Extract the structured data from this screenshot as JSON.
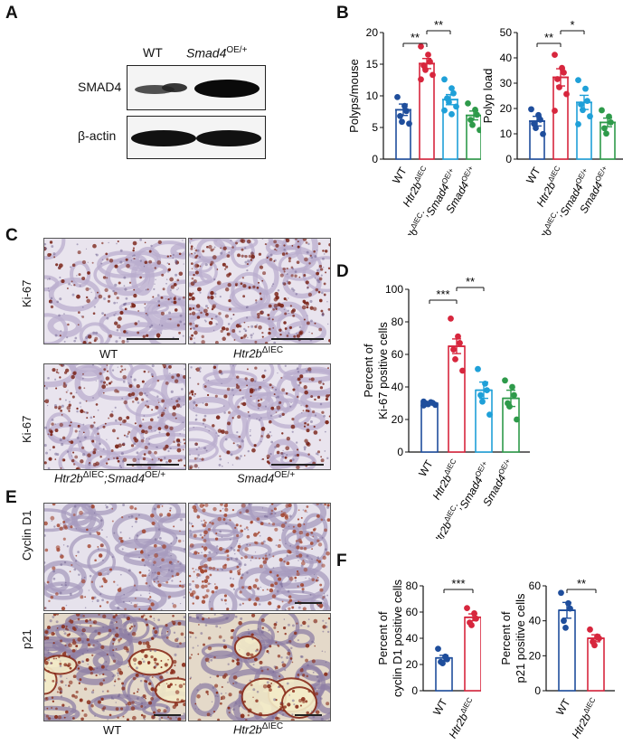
{
  "panels": {
    "A": "A",
    "B": "B",
    "C": "C",
    "D": "D",
    "E": "E",
    "F": "F"
  },
  "western_blot": {
    "col_wt": "WT",
    "col_smad4_gene": "Smad4",
    "col_smad4_sup": "OE/+",
    "row_smad4": "SMAD4",
    "row_actin": "β-actin"
  },
  "ihc": {
    "row_ki67": "Ki-67",
    "row_cyclin": "Cyclin D1",
    "row_p21": "p21",
    "cap_wt": "WT",
    "cap_htr2b": "Htr2b",
    "sup_iec": "ΔIEC",
    "cap_combo_gene": "Htr2b",
    "cap_combo_mid": ";Smad4",
    "sup_oe": "OE/+",
    "cap_smad4": "Smad4"
  },
  "colors": {
    "wt": "#1f4e9c",
    "htr2b": "#d7263d",
    "combo": "#1fa0d8",
    "smad4": "#2e9a4a"
  },
  "chart_data": [
    {
      "id": "B1",
      "type": "bar",
      "ylabel": "Polyps/mouse",
      "ylim": [
        0,
        20
      ],
      "yticks": [
        0,
        5,
        10,
        15,
        20
      ],
      "categories": [
        "WT",
        "Htr2b ΔIEC",
        "Htr2b ΔIEC;Smad4 OE/+",
        "Smad4 OE/+"
      ],
      "values": [
        7.8,
        15.1,
        9.4,
        6.9
      ],
      "errors": [
        0.9,
        0.8,
        0.8,
        0.7
      ],
      "points": [
        [
          9.8,
          8.4,
          7.6,
          6.8,
          5.9,
          5.6
        ],
        [
          17.8,
          16.5,
          15.4,
          14.8,
          14.1,
          13.3,
          12.6
        ],
        [
          12.6,
          11.2,
          10.4,
          9.6,
          9.0,
          8.3,
          7.7,
          7.1
        ],
        [
          8.8,
          7.8,
          7.0,
          6.2,
          5.4,
          4.6
        ]
      ],
      "significance": [
        {
          "from": 0,
          "to": 1,
          "label": "**"
        },
        {
          "from": 1,
          "to": 2,
          "label": "**"
        }
      ]
    },
    {
      "id": "B2",
      "type": "bar",
      "ylabel": "Polyp load",
      "ylim": [
        0,
        50
      ],
      "yticks": [
        0,
        10,
        20,
        30,
        40,
        50
      ],
      "categories": [
        "WT",
        "Htr2b ΔIEC",
        "Htr2b ΔIEC;Smad4 OE/+",
        "Smad4 OE/+"
      ],
      "values": [
        15.0,
        32.3,
        22.4,
        14.5
      ],
      "errors": [
        1.9,
        3.4,
        2.8,
        1.7
      ],
      "points": [
        [
          19.7,
          17.4,
          15.6,
          14.0,
          12.3,
          9.9
        ],
        [
          41.2,
          36.0,
          34.2,
          31.6,
          28.4,
          25.7,
          19.1
        ],
        [
          31.2,
          27.8,
          23.0,
          21.6,
          19.4,
          16.9,
          13.8
        ],
        [
          19.3,
          16.8,
          14.5,
          12.2,
          10.1
        ]
      ],
      "significance": [
        {
          "from": 0,
          "to": 1,
          "label": "**"
        },
        {
          "from": 1,
          "to": 2,
          "label": "*"
        }
      ]
    },
    {
      "id": "D",
      "type": "bar",
      "ylabel": "Percent of",
      "ylabel2": "Ki-67 positive cells",
      "ylim": [
        0,
        100
      ],
      "yticks": [
        0,
        20,
        40,
        60,
        80,
        100
      ],
      "categories": [
        "WT",
        "Htr2b ΔIEC",
        "Htr2b ΔIEC;Smad4 OE/+",
        "Smad4 OE/+"
      ],
      "values": [
        30.0,
        65.0,
        38.0,
        33.0
      ],
      "errors": [
        0.8,
        4.5,
        5.0,
        5.0
      ],
      "points": [
        [
          31.0,
          30.6,
          30.2,
          29.8,
          29.4,
          29.0,
          28.6
        ],
        [
          82.0,
          71.0,
          67.0,
          63.0,
          57.0,
          50.0
        ],
        [
          51.0,
          42.0,
          38.0,
          35.0,
          31.0,
          23.0
        ],
        [
          44.0,
          40.0,
          35.0,
          30.0,
          28.0,
          20.0
        ]
      ],
      "significance": [
        {
          "from": 0,
          "to": 1,
          "label": "***"
        },
        {
          "from": 1,
          "to": 2,
          "label": "**"
        }
      ]
    },
    {
      "id": "F1",
      "type": "bar",
      "ylabel": "Percent of",
      "ylabel2": "cyclin D1 positive cells",
      "ylim": [
        0,
        80
      ],
      "yticks": [
        0,
        20,
        40,
        60,
        80
      ],
      "categories": [
        "WT",
        "Htr2b ΔIEC"
      ],
      "values": [
        25.0,
        56.0
      ],
      "errors": [
        2.0,
        2.6
      ],
      "points": [
        [
          32.0,
          26.0,
          24.0,
          22.0,
          21.0
        ],
        [
          63.0,
          59.0,
          55.0,
          52.0,
          50.0
        ]
      ],
      "significance": [
        {
          "from": 0,
          "to": 1,
          "label": "***"
        }
      ]
    },
    {
      "id": "F2",
      "type": "bar",
      "ylabel": "Percent of",
      "ylabel2": "p21 positive cells",
      "ylim": [
        0,
        60
      ],
      "yticks": [
        0,
        20,
        40,
        60
      ],
      "categories": [
        "WT",
        "Htr2b ΔIEC"
      ],
      "values": [
        46.0,
        30.0
      ],
      "errors": [
        4.5,
        2.0
      ],
      "points": [
        [
          56.0,
          50.0,
          47.0,
          40.0,
          36.0
        ],
        [
          35.0,
          31.0,
          30.0,
          28.0,
          26.0
        ]
      ],
      "significance": [
        {
          "from": 0,
          "to": 1,
          "label": "**"
        }
      ]
    }
  ]
}
